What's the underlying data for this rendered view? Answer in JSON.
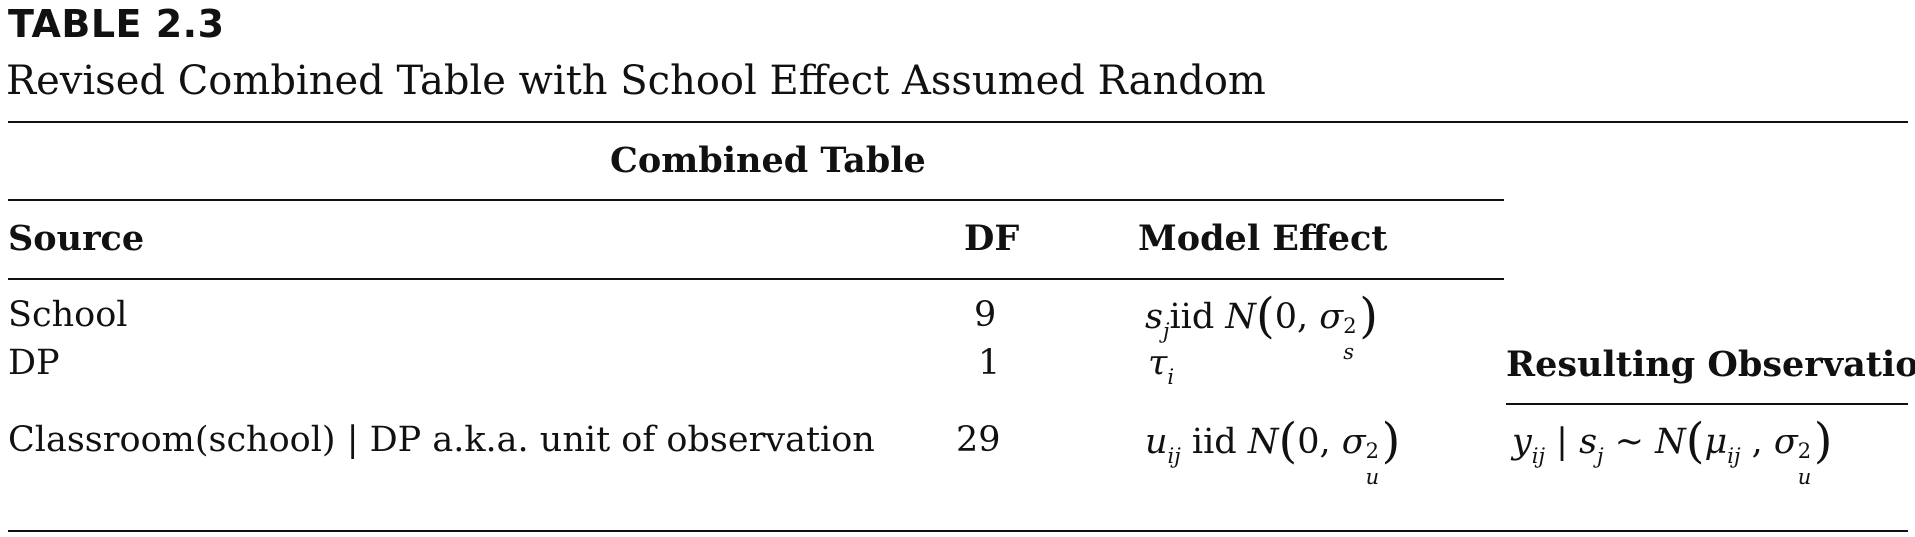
{
  "table": {
    "number": "TABLE 2.3",
    "caption": "Revised Combined Table with School Effect Assumed Random",
    "group_header": "Combined Table",
    "columns": [
      "Source",
      "DF",
      "Model Effect"
    ],
    "side_header": "Resulting Observation",
    "rows": [
      {
        "source": "School",
        "df": "9",
        "effect": "s_j iid N(0, σ_s^2)"
      },
      {
        "source": "DP",
        "df": "1",
        "effect": "τ_i"
      },
      {
        "source": "Classroom(school) | DP a.k.a. unit of observation",
        "df": "29",
        "effect": "u_ij iid N(0, σ_u^2)"
      }
    ],
    "observation": "y_ij | s_j ~ N(μ_ij, σ_u^2)"
  }
}
